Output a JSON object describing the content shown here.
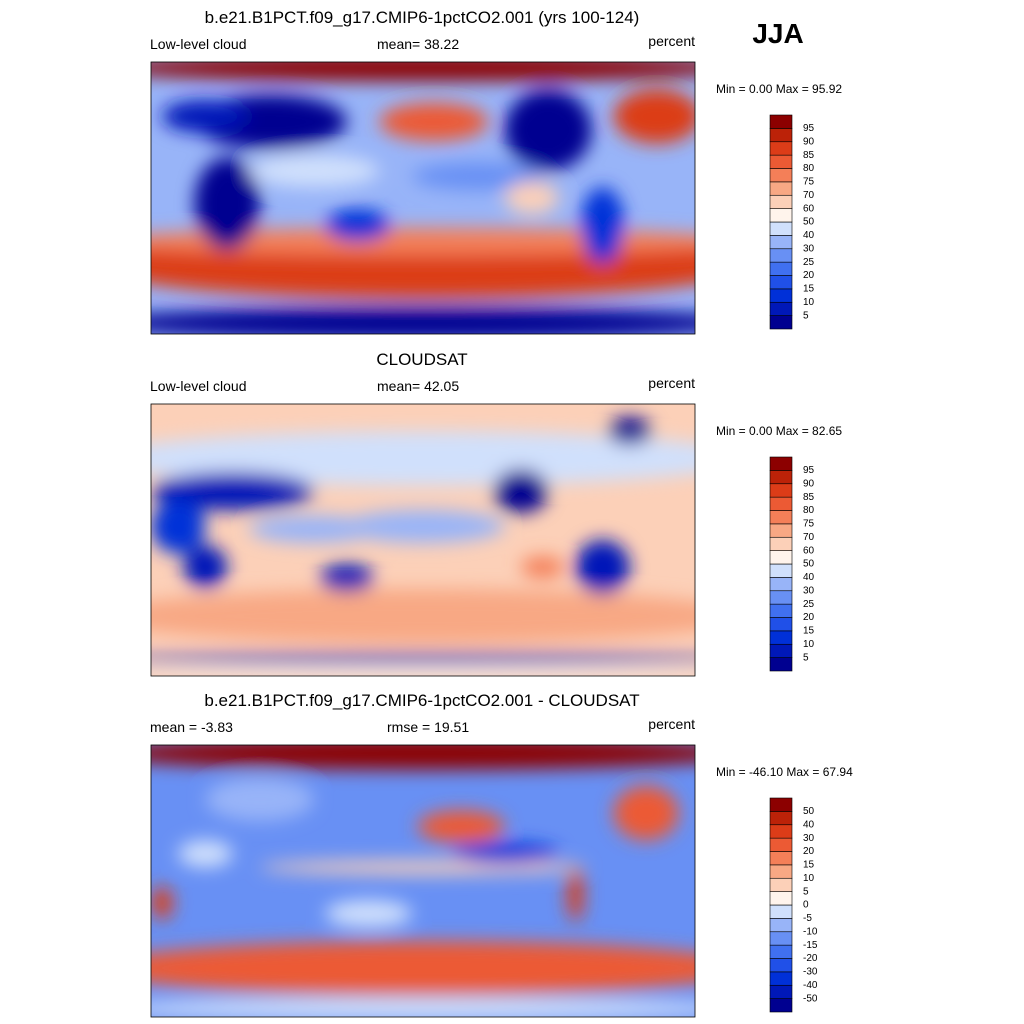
{
  "season": "JJA",
  "panels": [
    {
      "title": "b.e21.B1PCT.f09_g17.CMIP6-1pctCO2.001 (yrs 100-124)",
      "left": "Low-level cloud",
      "center": "mean=  38.22",
      "right": "percent",
      "range": "Min =   0.00 Max =  95.92",
      "colorbar": [
        5,
        10,
        15,
        20,
        25,
        30,
        40,
        50,
        60,
        70,
        75,
        80,
        85,
        90,
        95
      ]
    },
    {
      "title": "CLOUDSAT",
      "left": "Low-level cloud",
      "center": "mean=  42.05",
      "right": "percent",
      "range": "Min =   0.00 Max =  82.65",
      "colorbar": [
        5,
        10,
        15,
        20,
        25,
        30,
        40,
        50,
        60,
        70,
        75,
        80,
        85,
        90,
        95
      ]
    },
    {
      "title": "b.e21.B1PCT.f09_g17.CMIP6-1pctCO2.001 - CLOUDSAT",
      "left": "mean =  -3.83",
      "center": "rmse =  19.51",
      "right": "percent",
      "range": "Min = -46.10 Max =  67.94",
      "colorbar": [
        -50,
        -40,
        -30,
        -20,
        -15,
        -10,
        -5,
        0,
        5,
        10,
        15,
        20,
        30,
        40,
        50
      ]
    }
  ],
  "colors": [
    "#000090",
    "#0018b8",
    "#0030d8",
    "#2050e8",
    "#4070f0",
    "#6890f4",
    "#98b4f8",
    "#d0e0fc",
    "#fff4ec",
    "#fcd0b8",
    "#f8a884",
    "#f47f58",
    "#ec5a34",
    "#dc3c18",
    "#bc2208",
    "#8c0000"
  ]
}
